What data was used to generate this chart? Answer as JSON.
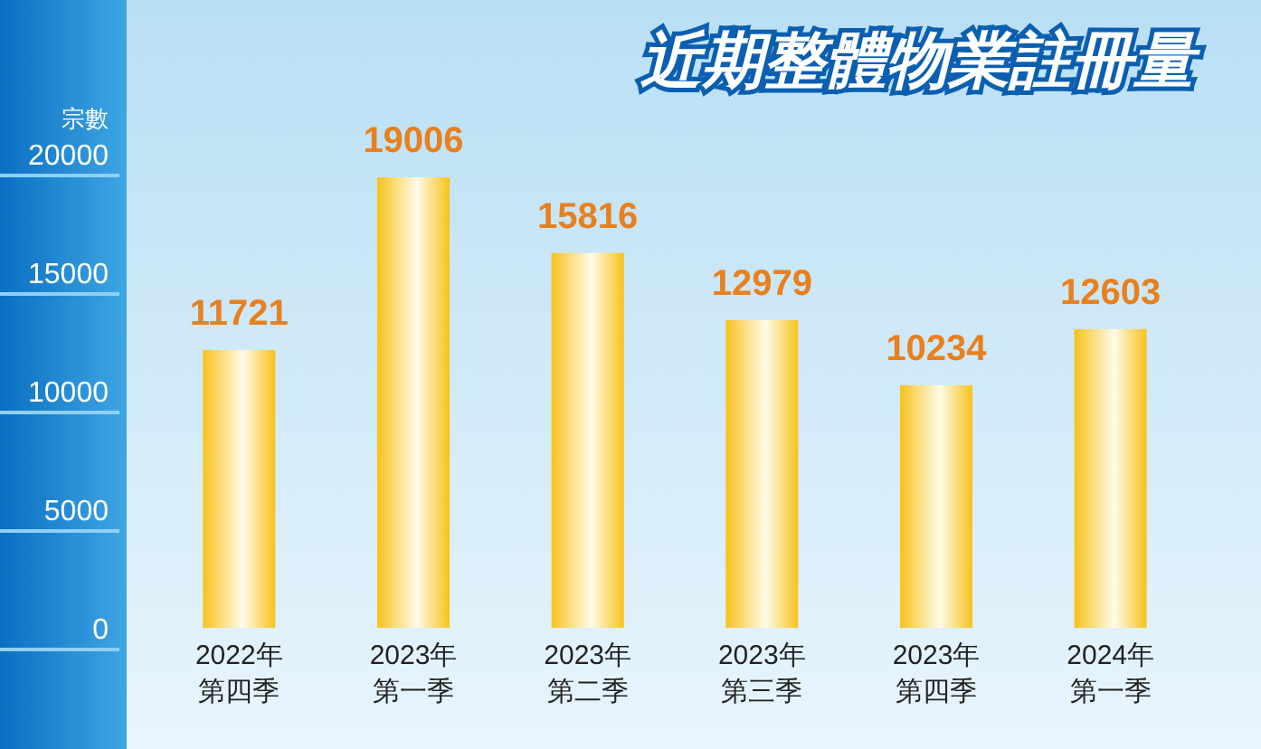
{
  "chart_data": {
    "type": "bar",
    "title": "近期整體物業註冊量",
    "ylabel": "宗數",
    "categories": [
      "2022年第四季",
      "2023年第一季",
      "2023年第二季",
      "2023年第三季",
      "2023年第四季",
      "2024年第一季"
    ],
    "values": [
      11721,
      19006,
      15816,
      12979,
      10234,
      12603
    ],
    "color": "#f7c21c",
    "ylim": [
      0,
      20000
    ],
    "yticks": [
      0,
      5000,
      10000,
      15000,
      20000
    ],
    "data_labels": true
  }
}
